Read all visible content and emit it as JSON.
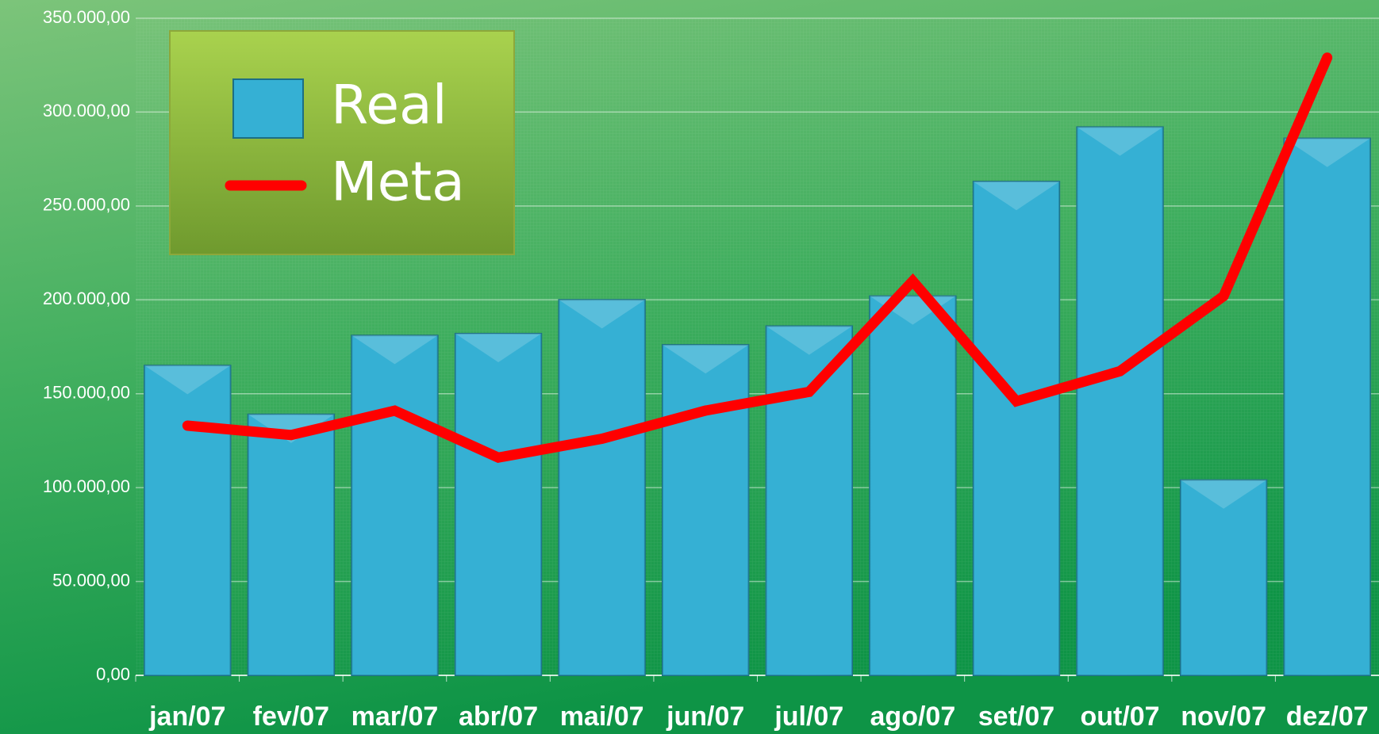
{
  "chart_data": {
    "type": "bar",
    "categories": [
      "jan/07",
      "fev/07",
      "mar/07",
      "abr/07",
      "mai/07",
      "jun/07",
      "jul/07",
      "ago/07",
      "set/07",
      "out/07",
      "nov/07",
      "dez/07"
    ],
    "series": [
      {
        "name": "Real",
        "type": "bar",
        "color": "#35b0d4",
        "values": [
          165000,
          139000,
          181000,
          182000,
          200000,
          176000,
          186000,
          202000,
          263000,
          292000,
          104000,
          286000
        ]
      },
      {
        "name": "Meta",
        "type": "line",
        "color": "#ff0000",
        "values": [
          133000,
          128000,
          141000,
          116000,
          126000,
          141000,
          151000,
          210000,
          146000,
          162000,
          202000,
          329000
        ]
      }
    ],
    "ylim": [
      0,
      350000
    ],
    "yticks": [
      {
        "value": 0,
        "label": "0,00"
      },
      {
        "value": 50000,
        "label": "50.000,00"
      },
      {
        "value": 100000,
        "label": "100.000,00"
      },
      {
        "value": 150000,
        "label": "150.000,00"
      },
      {
        "value": 200000,
        "label": "200.000,00"
      },
      {
        "value": 250000,
        "label": "250.000,00"
      },
      {
        "value": 300000,
        "label": "300.000,00"
      },
      {
        "value": 350000,
        "label": "350.000,00"
      }
    ],
    "grid": true,
    "legend": "top-left"
  }
}
